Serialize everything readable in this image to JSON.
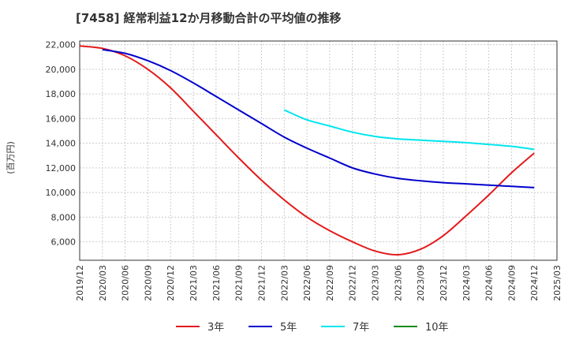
{
  "title": "[7458]  経常利益12か月移動合計の平均値の推移",
  "chart_data": {
    "type": "line",
    "title": "[7458]  経常利益12か月移動合計の平均値の推移",
    "ylabel": "(百万円)",
    "xlabel": "",
    "ylim": [
      4500,
      22300
    ],
    "yticks": [
      6000,
      8000,
      10000,
      12000,
      14000,
      16000,
      18000,
      20000,
      22000
    ],
    "ytick_labels": [
      "6,000",
      "8,000",
      "10,000",
      "12,000",
      "14,000",
      "16,000",
      "18,000",
      "20,000",
      "22,000"
    ],
    "xticks": [
      "2019/12",
      "2020/03",
      "2020/06",
      "2020/09",
      "2020/12",
      "2021/03",
      "2021/06",
      "2021/09",
      "2021/12",
      "2022/03",
      "2022/06",
      "2022/09",
      "2022/12",
      "2023/03",
      "2023/06",
      "2023/09",
      "2023/12",
      "2024/03",
      "2024/06",
      "2024/09",
      "2024/12",
      "2025/03"
    ],
    "grid": true,
    "legend_position": "bottom",
    "series": [
      {
        "name": "3年",
        "color": "#e31a1c",
        "x": [
          "2019/12",
          "2020/03",
          "2020/06",
          "2020/09",
          "2020/12",
          "2021/03",
          "2021/06",
          "2021/09",
          "2021/12",
          "2022/03",
          "2022/06",
          "2022/09",
          "2022/12",
          "2023/03",
          "2023/06",
          "2023/09",
          "2023/12",
          "2024/03",
          "2024/06",
          "2024/09",
          "2024/12"
        ],
        "values": [
          21900,
          21700,
          21100,
          20000,
          18500,
          16600,
          14700,
          12800,
          11000,
          9400,
          8000,
          6900,
          6000,
          5250,
          4950,
          5400,
          6500,
          8100,
          9800,
          11600,
          13200
        ]
      },
      {
        "name": "5年",
        "color": "#0000cc",
        "x": [
          "2020/03",
          "2020/06",
          "2020/09",
          "2020/12",
          "2021/03",
          "2021/06",
          "2021/09",
          "2021/12",
          "2022/03",
          "2022/06",
          "2022/09",
          "2022/12",
          "2023/03",
          "2023/06",
          "2023/09",
          "2023/12",
          "2024/03",
          "2024/06",
          "2024/09",
          "2024/12"
        ],
        "values": [
          21600,
          21300,
          20700,
          19900,
          18900,
          17800,
          16700,
          15600,
          14500,
          13600,
          12800,
          12000,
          11500,
          11150,
          10950,
          10800,
          10700,
          10600,
          10500,
          10400
        ]
      },
      {
        "name": "7年",
        "color": "#00e5ee",
        "x": [
          "2022/03",
          "2022/06",
          "2022/09",
          "2022/12",
          "2023/03",
          "2023/06",
          "2023/09",
          "2023/12",
          "2024/03",
          "2024/06",
          "2024/09",
          "2024/12"
        ],
        "values": [
          16700,
          15900,
          15400,
          14900,
          14550,
          14350,
          14250,
          14150,
          14050,
          13900,
          13750,
          13500
        ]
      },
      {
        "name": "10年",
        "color": "#1a8a1a",
        "x": [],
        "values": []
      }
    ]
  }
}
